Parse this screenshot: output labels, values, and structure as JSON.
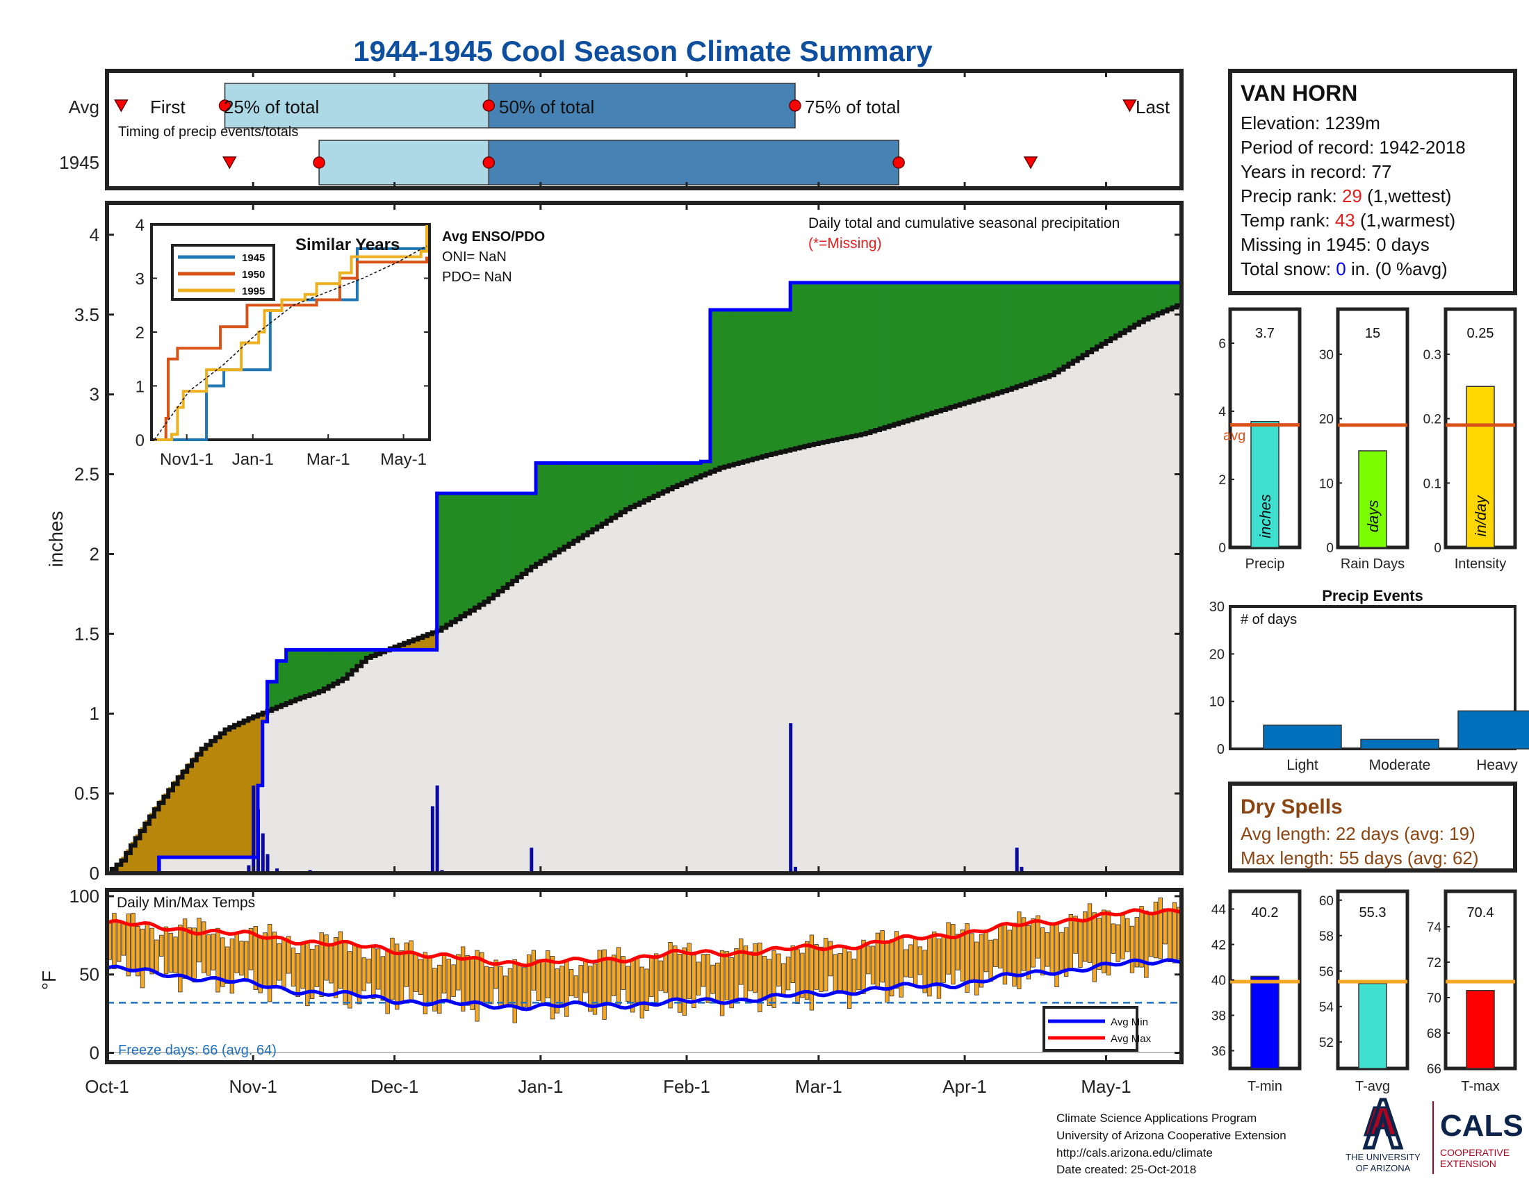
{
  "title": "1944-1945 Cool Season Climate Summary",
  "months": [
    "Oct-1",
    "Nov-1",
    "Dec-1",
    "Jan-1",
    "Feb-1",
    "Mar-1",
    "Apr-1",
    "May-1"
  ],
  "timing": {
    "row_labels": [
      "Avg",
      "1945"
    ],
    "avg_labels": [
      "First",
      "25% of total",
      "50% of total",
      "75% of total",
      "Last"
    ],
    "caption": "Timing of precip events/totals",
    "avg_days": {
      "first": 3,
      "p25": 25,
      "p50": 81,
      "p75": 146,
      "last": 217
    },
    "y1945_days": {
      "first": 26,
      "p25": 45,
      "p50": 81,
      "p75": 168,
      "last": 196
    }
  },
  "precip": {
    "ylabel": "inches",
    "yticks": [
      "0",
      "0.5",
      "1",
      "1.5",
      "2",
      "2.5",
      "3",
      "3.5",
      "4"
    ],
    "note": "Daily total and cumulative seasonal precipitation",
    "missing_note": "(*=Missing)"
  },
  "inset": {
    "title": "Similar Years",
    "legend": [
      "1945",
      "1950",
      "1995"
    ],
    "legend_colors": [
      "#1f77b4",
      "#d95319",
      "#edb120"
    ],
    "xticks": [
      "Nov1-1",
      "Jan-1",
      "Mar-1",
      "May-1"
    ],
    "yticks": [
      "0",
      "1",
      "2",
      "3",
      "4"
    ],
    "enso_title": "Avg ENSO/PDO",
    "oni": "ONI= NaN",
    "pdo": "PDO= NaN"
  },
  "temps": {
    "title": "Daily Min/Max Temps",
    "ylabel": "°F",
    "yticks": [
      "0",
      "50",
      "100"
    ],
    "freeze": "Freeze days: 66 (avg. 64)",
    "legend": [
      "Avg Min",
      "Avg Max"
    ]
  },
  "station": {
    "name": "VAN HORN",
    "elevation": "Elevation: 1239m",
    "period": "Period of record: 1942-2018",
    "years": "Years in record: 77",
    "precip_rank_pre": "Precip rank: ",
    "precip_rank_val": "29",
    "precip_rank_post": " (1,wettest)",
    "temp_rank_pre": "Temp rank: ",
    "temp_rank_val": "43",
    "temp_rank_post": " (1,warmest)",
    "missing": "Missing in 1945: 0 days",
    "snow_pre": "Total snow: ",
    "snow_val": "0",
    "snow_post": " in. (0 %avg)"
  },
  "mini_bars": [
    {
      "value_label": "3.7",
      "unit": "inches",
      "xlabel": "Precip",
      "yticks": [
        "0",
        "2",
        "4",
        "6"
      ],
      "avg_label": "avg",
      "color": "#40e0d0",
      "value": 3.7,
      "avg": 3.6,
      "ymax": 7
    },
    {
      "value_label": "15",
      "unit": "days",
      "xlabel": "Rain Days",
      "yticks": [
        "0",
        "10",
        "20",
        "30"
      ],
      "color": "#7cfc00",
      "value": 15,
      "avg": 19,
      "ymax": 37
    },
    {
      "value_label": "0.25",
      "unit": "in/day",
      "xlabel": "Intensity",
      "yticks": [
        "0",
        "0.1",
        "0.2",
        "0.3"
      ],
      "color": "#ffd700",
      "value": 0.25,
      "avg": 0.19,
      "ymax": 0.37
    }
  ],
  "events": {
    "title": "Precip Events",
    "ylabel": "# of days",
    "categories": [
      "Light",
      "Moderate",
      "Heavy"
    ],
    "values": [
      5,
      2,
      8
    ],
    "yticks": [
      "0",
      "10",
      "20",
      "30"
    ]
  },
  "dry_spells": {
    "title": "Dry Spells",
    "avg": "Avg length: 22 days (avg: 19)",
    "max": "Max length: 55 days (avg: 62)"
  },
  "temp_bars": [
    {
      "value_label": "40.2",
      "xlabel": "T-min",
      "yticks": [
        "36",
        "38",
        "40",
        "42",
        "44"
      ],
      "ymin": 35,
      "ymax": 45,
      "value": 40.2,
      "avg": 39.9,
      "color": "#0000ff"
    },
    {
      "value_label": "55.3",
      "xlabel": "T-avg",
      "yticks": [
        "52",
        "54",
        "56",
        "58",
        "60"
      ],
      "ymin": 50.5,
      "ymax": 60.5,
      "value": 55.3,
      "avg": 55.4,
      "color": "#40e0d0"
    },
    {
      "value_label": "70.4",
      "xlabel": "T-max",
      "yticks": [
        "66",
        "68",
        "70",
        "72",
        "74"
      ],
      "ymin": 66,
      "ymax": 76,
      "value": 70.4,
      "avg": 70.9,
      "color": "#ff0000"
    }
  ],
  "footer": {
    "line1": "Climate Science Applications Program",
    "line2": "University of Arizona Cooperative Extension",
    "line3": "http://cals.arizona.edu/climate",
    "line4": " Date created: 25-Oct-2018"
  },
  "logos": {
    "ua1": "THE UNIVERSITY",
    "ua2": "OF ARIZONA",
    "cals": "CALS",
    "coop1": "COOPERATIVE",
    "coop2": "EXTENSION"
  },
  "chart_data": {
    "type": "area",
    "title": "1944-1945 Cool Season Climate Summary",
    "xlabel": "",
    "ylabel": "inches",
    "ylim": [
      0,
      4.2
    ],
    "avg_cumulative": {
      "days": [
        0,
        3,
        6,
        10,
        15,
        20,
        25,
        30,
        35,
        40,
        45,
        50,
        55,
        61,
        70,
        80,
        90,
        100,
        110,
        120,
        130,
        140,
        150,
        160,
        170,
        180,
        190,
        200,
        210,
        220,
        228
      ],
      "values": [
        0,
        0.08,
        0.22,
        0.4,
        0.6,
        0.78,
        0.9,
        0.97,
        1.03,
        1.09,
        1.14,
        1.22,
        1.35,
        1.42,
        1.52,
        1.7,
        1.92,
        2.1,
        2.28,
        2.42,
        2.54,
        2.62,
        2.69,
        2.75,
        2.84,
        2.93,
        3.02,
        3.12,
        3.3,
        3.47,
        3.57
      ]
    },
    "cumulative_1945": {
      "days": [
        0,
        11,
        30,
        32,
        33,
        34,
        36,
        38,
        43,
        48,
        54,
        55,
        69,
        70,
        90,
        91,
        125,
        126,
        127,
        128,
        144,
        145,
        192,
        193,
        228
      ],
      "values": [
        0,
        0.1,
        0.1,
        0.55,
        0.95,
        1.2,
        1.33,
        1.4,
        1.4,
        1.4,
        1.4,
        1.4,
        1.4,
        2.38,
        2.38,
        2.57,
        2.57,
        2.58,
        2.58,
        3.53,
        3.53,
        3.7,
        3.7,
        3.7,
        3.7
      ]
    },
    "daily_precip": {
      "days": [
        11,
        30,
        31,
        32,
        33,
        34,
        36,
        43,
        69,
        70,
        71,
        90,
        125,
        145,
        146,
        168,
        193,
        194
      ],
      "values": [
        0.1,
        0.05,
        0.55,
        0.4,
        0.25,
        0.12,
        0.03,
        0.02,
        0.42,
        0.55,
        0.02,
        0.16,
        0.01,
        0.94,
        0.04,
        0.01,
        0.16,
        0.04
      ]
    },
    "inset_series": [
      {
        "name": "1945",
        "x": [
          0,
          40,
          45,
          60,
          62,
          100,
          110,
          130,
          145,
          175,
          190,
          235
        ],
        "y": [
          0,
          0,
          1,
          1.3,
          1.3,
          2.4,
          2.6,
          2.6,
          2.6,
          3.55,
          3.55,
          3.7
        ]
      },
      {
        "name": "1950",
        "x": [
          0,
          10,
          12,
          20,
          22,
          55,
          57,
          70,
          80,
          100,
          110,
          140,
          150,
          160,
          175,
          200,
          235
        ],
        "y": [
          0,
          0.4,
          1.5,
          1.7,
          1.7,
          1.7,
          2.1,
          2.1,
          2.5,
          2.5,
          2.5,
          2.6,
          2.6,
          3,
          3.3,
          3.3,
          3.4
        ]
      },
      {
        "name": "1995",
        "x": [
          0,
          15,
          20,
          25,
          40,
          45,
          55,
          70,
          75,
          90,
          95,
          110,
          130,
          140,
          160,
          170,
          190,
          230,
          235
        ],
        "y": [
          0,
          0.1,
          0.6,
          0.9,
          0.9,
          1.3,
          1.3,
          1.3,
          1.8,
          2,
          2.4,
          2.6,
          2.7,
          2.9,
          3.1,
          3.4,
          3.4,
          3.5,
          4
        ]
      }
    ],
    "inset_avg": {
      "x": [
        0,
        30,
        60,
        90,
        120,
        150,
        180,
        210,
        235
      ],
      "y": [
        0,
        0.9,
        1.4,
        2.0,
        2.5,
        2.75,
        3.0,
        3.3,
        3.6
      ]
    },
    "temp_avg_max": {
      "days": [
        0,
        20,
        40,
        60,
        80,
        100,
        120,
        140,
        160,
        180,
        200,
        228
      ],
      "values": [
        83,
        78,
        72,
        66,
        58,
        58,
        63,
        65,
        69,
        76,
        84,
        92
      ]
    },
    "temp_avg_min": {
      "days": [
        0,
        20,
        40,
        60,
        80,
        100,
        120,
        140,
        160,
        180,
        200,
        228
      ],
      "values": [
        54,
        48,
        40,
        34,
        30,
        30,
        32,
        35,
        40,
        44,
        52,
        60
      ]
    },
    "temp_freeze_line": 32
  }
}
